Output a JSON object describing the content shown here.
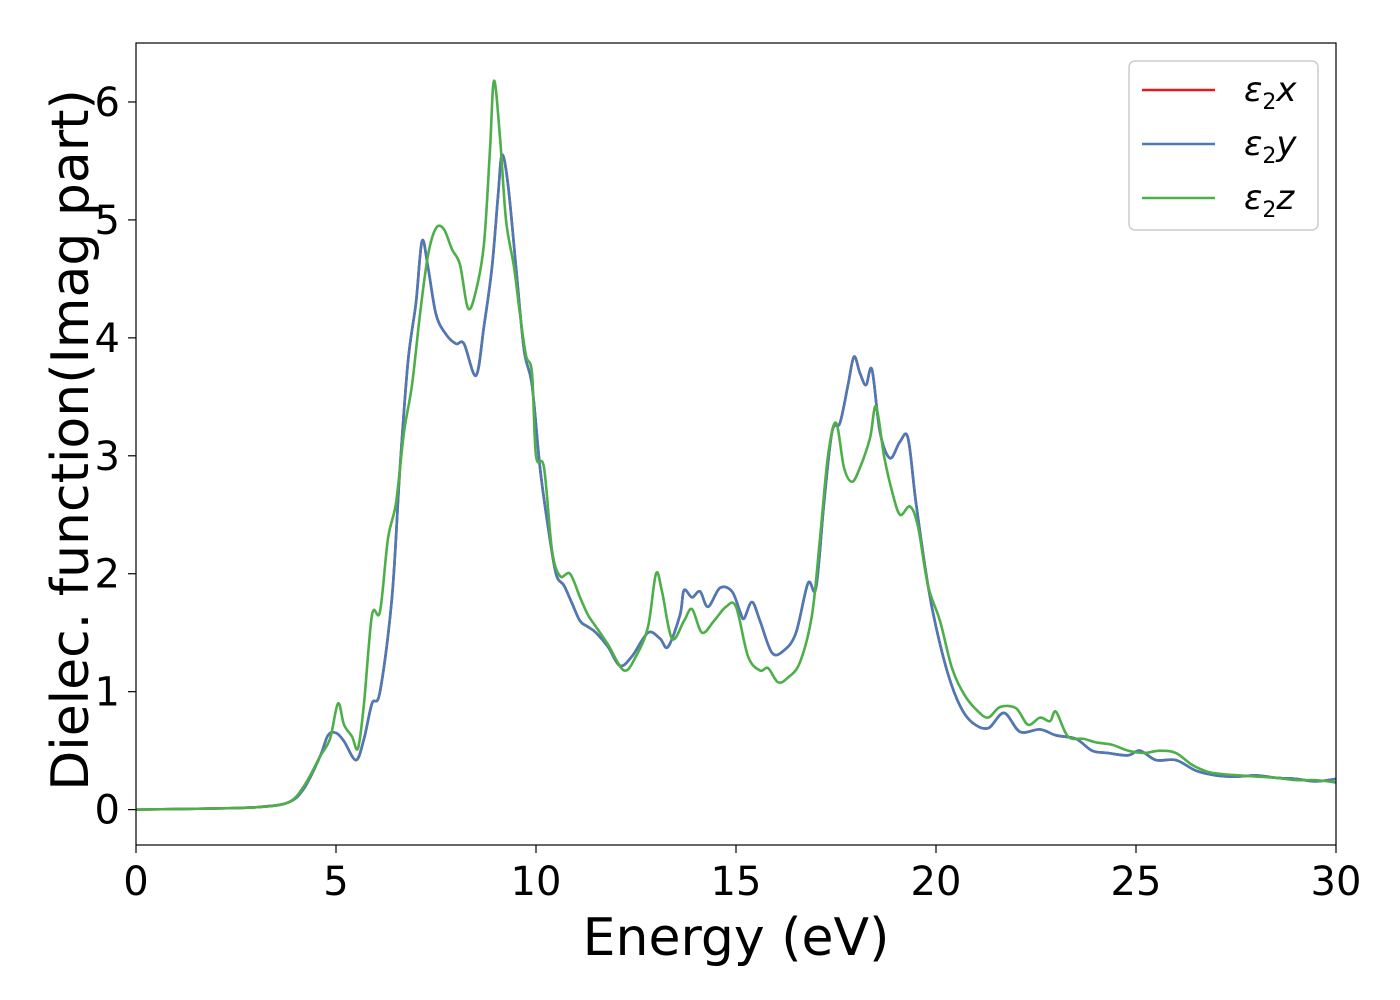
{
  "chart_data": {
    "type": "line",
    "xlabel": "Energy (eV)",
    "ylabel": "Dielec. function(Imag part)",
    "xlim": [
      0,
      30
    ],
    "ylim": [
      -0.3,
      6.5
    ],
    "xticks": [
      0,
      5,
      10,
      15,
      20,
      25,
      30
    ],
    "yticks": [
      0,
      1,
      2,
      3,
      4,
      5,
      6
    ],
    "grid": false,
    "legend_position": "top-right",
    "series": [
      {
        "name": "ε2x",
        "legend_base": "ε",
        "legend_sub": "2",
        "legend_tail": "x",
        "color": "#e41a1c",
        "points": [
          [
            0,
            0
          ],
          [
            1,
            0.005
          ],
          [
            2,
            0.01
          ],
          [
            3,
            0.02
          ],
          [
            3.8,
            0.06
          ],
          [
            4.2,
            0.18
          ],
          [
            4.6,
            0.45
          ],
          [
            4.8,
            0.63
          ],
          [
            5.0,
            0.65
          ],
          [
            5.2,
            0.58
          ],
          [
            5.5,
            0.42
          ],
          [
            5.7,
            0.6
          ],
          [
            5.9,
            0.9
          ],
          [
            6.1,
            1.0
          ],
          [
            6.4,
            1.8
          ],
          [
            6.6,
            2.9
          ],
          [
            6.8,
            3.8
          ],
          [
            7.0,
            4.3
          ],
          [
            7.15,
            4.82
          ],
          [
            7.3,
            4.6
          ],
          [
            7.5,
            4.2
          ],
          [
            7.75,
            4.03
          ],
          [
            8.0,
            3.95
          ],
          [
            8.2,
            3.95
          ],
          [
            8.5,
            3.68
          ],
          [
            8.7,
            4.1
          ],
          [
            8.9,
            4.6
          ],
          [
            9.05,
            5.2
          ],
          [
            9.15,
            5.55
          ],
          [
            9.3,
            5.3
          ],
          [
            9.5,
            4.6
          ],
          [
            9.7,
            3.9
          ],
          [
            9.9,
            3.6
          ],
          [
            10.1,
            2.9
          ],
          [
            10.3,
            2.4
          ],
          [
            10.5,
            2.0
          ],
          [
            10.7,
            1.9
          ],
          [
            10.9,
            1.75
          ],
          [
            11.1,
            1.6
          ],
          [
            11.3,
            1.55
          ],
          [
            11.5,
            1.5
          ],
          [
            11.8,
            1.38
          ],
          [
            12.1,
            1.22
          ],
          [
            12.4,
            1.3
          ],
          [
            12.8,
            1.5
          ],
          [
            13.1,
            1.45
          ],
          [
            13.3,
            1.38
          ],
          [
            13.6,
            1.65
          ],
          [
            13.7,
            1.86
          ],
          [
            13.9,
            1.8
          ],
          [
            14.1,
            1.85
          ],
          [
            14.3,
            1.72
          ],
          [
            14.6,
            1.88
          ],
          [
            14.9,
            1.85
          ],
          [
            15.1,
            1.68
          ],
          [
            15.2,
            1.62
          ],
          [
            15.4,
            1.76
          ],
          [
            15.6,
            1.6
          ],
          [
            15.9,
            1.33
          ],
          [
            16.2,
            1.35
          ],
          [
            16.5,
            1.5
          ],
          [
            16.8,
            1.92
          ],
          [
            17.0,
            1.88
          ],
          [
            17.2,
            2.6
          ],
          [
            17.4,
            3.2
          ],
          [
            17.6,
            3.28
          ],
          [
            17.8,
            3.6
          ],
          [
            17.95,
            3.84
          ],
          [
            18.1,
            3.7
          ],
          [
            18.25,
            3.6
          ],
          [
            18.4,
            3.73
          ],
          [
            18.6,
            3.2
          ],
          [
            18.85,
            2.98
          ],
          [
            19.1,
            3.12
          ],
          [
            19.3,
            3.15
          ],
          [
            19.5,
            2.6
          ],
          [
            19.8,
            1.9
          ],
          [
            20.0,
            1.55
          ],
          [
            20.3,
            1.15
          ],
          [
            20.6,
            0.88
          ],
          [
            20.9,
            0.74
          ],
          [
            21.3,
            0.69
          ],
          [
            21.7,
            0.82
          ],
          [
            22.1,
            0.66
          ],
          [
            22.6,
            0.68
          ],
          [
            23.0,
            0.63
          ],
          [
            23.5,
            0.6
          ],
          [
            23.9,
            0.5
          ],
          [
            24.3,
            0.48
          ],
          [
            24.8,
            0.46
          ],
          [
            25.1,
            0.5
          ],
          [
            25.5,
            0.42
          ],
          [
            26.0,
            0.42
          ],
          [
            26.5,
            0.33
          ],
          [
            27.0,
            0.29
          ],
          [
            27.5,
            0.28
          ],
          [
            28.0,
            0.29
          ],
          [
            28.5,
            0.27
          ],
          [
            29.0,
            0.26
          ],
          [
            29.5,
            0.24
          ],
          [
            30,
            0.26
          ]
        ]
      },
      {
        "name": "ε2y",
        "legend_base": "ε",
        "legend_sub": "2",
        "legend_tail": "y",
        "color": "#4a7bb7",
        "points": [
          [
            0,
            0
          ],
          [
            1,
            0.005
          ],
          [
            2,
            0.01
          ],
          [
            3,
            0.02
          ],
          [
            3.8,
            0.06
          ],
          [
            4.2,
            0.18
          ],
          [
            4.6,
            0.45
          ],
          [
            4.8,
            0.63
          ],
          [
            5.0,
            0.65
          ],
          [
            5.2,
            0.58
          ],
          [
            5.5,
            0.42
          ],
          [
            5.7,
            0.6
          ],
          [
            5.9,
            0.9
          ],
          [
            6.1,
            1.0
          ],
          [
            6.4,
            1.8
          ],
          [
            6.6,
            2.9
          ],
          [
            6.8,
            3.8
          ],
          [
            7.0,
            4.3
          ],
          [
            7.15,
            4.82
          ],
          [
            7.3,
            4.6
          ],
          [
            7.5,
            4.2
          ],
          [
            7.75,
            4.03
          ],
          [
            8.0,
            3.95
          ],
          [
            8.2,
            3.95
          ],
          [
            8.5,
            3.68
          ],
          [
            8.7,
            4.1
          ],
          [
            8.9,
            4.6
          ],
          [
            9.05,
            5.2
          ],
          [
            9.15,
            5.55
          ],
          [
            9.3,
            5.3
          ],
          [
            9.5,
            4.6
          ],
          [
            9.7,
            3.9
          ],
          [
            9.9,
            3.6
          ],
          [
            10.1,
            2.9
          ],
          [
            10.3,
            2.4
          ],
          [
            10.5,
            2.0
          ],
          [
            10.7,
            1.9
          ],
          [
            10.9,
            1.75
          ],
          [
            11.1,
            1.6
          ],
          [
            11.3,
            1.55
          ],
          [
            11.5,
            1.5
          ],
          [
            11.8,
            1.38
          ],
          [
            12.1,
            1.22
          ],
          [
            12.4,
            1.3
          ],
          [
            12.8,
            1.5
          ],
          [
            13.1,
            1.45
          ],
          [
            13.3,
            1.38
          ],
          [
            13.6,
            1.65
          ],
          [
            13.7,
            1.86
          ],
          [
            13.9,
            1.8
          ],
          [
            14.1,
            1.85
          ],
          [
            14.3,
            1.72
          ],
          [
            14.6,
            1.88
          ],
          [
            14.9,
            1.85
          ],
          [
            15.1,
            1.68
          ],
          [
            15.2,
            1.62
          ],
          [
            15.4,
            1.76
          ],
          [
            15.6,
            1.6
          ],
          [
            15.9,
            1.33
          ],
          [
            16.2,
            1.35
          ],
          [
            16.5,
            1.5
          ],
          [
            16.8,
            1.92
          ],
          [
            17.0,
            1.88
          ],
          [
            17.2,
            2.6
          ],
          [
            17.4,
            3.2
          ],
          [
            17.6,
            3.28
          ],
          [
            17.8,
            3.6
          ],
          [
            17.95,
            3.84
          ],
          [
            18.1,
            3.7
          ],
          [
            18.25,
            3.6
          ],
          [
            18.4,
            3.73
          ],
          [
            18.6,
            3.2
          ],
          [
            18.85,
            2.98
          ],
          [
            19.1,
            3.12
          ],
          [
            19.3,
            3.15
          ],
          [
            19.5,
            2.6
          ],
          [
            19.8,
            1.9
          ],
          [
            20.0,
            1.55
          ],
          [
            20.3,
            1.15
          ],
          [
            20.6,
            0.88
          ],
          [
            20.9,
            0.74
          ],
          [
            21.3,
            0.69
          ],
          [
            21.7,
            0.82
          ],
          [
            22.1,
            0.66
          ],
          [
            22.6,
            0.68
          ],
          [
            23.0,
            0.63
          ],
          [
            23.5,
            0.6
          ],
          [
            23.9,
            0.5
          ],
          [
            24.3,
            0.48
          ],
          [
            24.8,
            0.46
          ],
          [
            25.1,
            0.5
          ],
          [
            25.5,
            0.42
          ],
          [
            26.0,
            0.42
          ],
          [
            26.5,
            0.33
          ],
          [
            27.0,
            0.29
          ],
          [
            27.5,
            0.28
          ],
          [
            28.0,
            0.29
          ],
          [
            28.5,
            0.27
          ],
          [
            29.0,
            0.26
          ],
          [
            29.5,
            0.24
          ],
          [
            30,
            0.26
          ]
        ]
      },
      {
        "name": "ε2z",
        "legend_base": "ε",
        "legend_sub": "2",
        "legend_tail": "z",
        "color": "#4daf4a",
        "points": [
          [
            0,
            0
          ],
          [
            1,
            0.005
          ],
          [
            2,
            0.01
          ],
          [
            3,
            0.02
          ],
          [
            3.8,
            0.06
          ],
          [
            4.2,
            0.2
          ],
          [
            4.6,
            0.45
          ],
          [
            4.85,
            0.6
          ],
          [
            5.05,
            0.9
          ],
          [
            5.2,
            0.72
          ],
          [
            5.4,
            0.62
          ],
          [
            5.55,
            0.52
          ],
          [
            5.7,
            0.9
          ],
          [
            5.9,
            1.65
          ],
          [
            6.1,
            1.68
          ],
          [
            6.3,
            2.3
          ],
          [
            6.5,
            2.6
          ],
          [
            6.7,
            3.2
          ],
          [
            6.9,
            3.6
          ],
          [
            7.1,
            4.2
          ],
          [
            7.3,
            4.7
          ],
          [
            7.5,
            4.93
          ],
          [
            7.7,
            4.92
          ],
          [
            7.9,
            4.75
          ],
          [
            8.1,
            4.62
          ],
          [
            8.3,
            4.25
          ],
          [
            8.5,
            4.4
          ],
          [
            8.7,
            4.8
          ],
          [
            8.85,
            5.6
          ],
          [
            8.95,
            6.18
          ],
          [
            9.1,
            5.7
          ],
          [
            9.25,
            5.0
          ],
          [
            9.45,
            4.6
          ],
          [
            9.6,
            4.2
          ],
          [
            9.75,
            3.85
          ],
          [
            9.9,
            3.7
          ],
          [
            10.0,
            3.0
          ],
          [
            10.2,
            2.9
          ],
          [
            10.4,
            2.2
          ],
          [
            10.6,
            1.98
          ],
          [
            10.85,
            2.0
          ],
          [
            11.1,
            1.8
          ],
          [
            11.3,
            1.65
          ],
          [
            11.5,
            1.55
          ],
          [
            11.8,
            1.4
          ],
          [
            12.2,
            1.18
          ],
          [
            12.5,
            1.3
          ],
          [
            12.8,
            1.55
          ],
          [
            13.0,
            2.0
          ],
          [
            13.15,
            1.85
          ],
          [
            13.4,
            1.45
          ],
          [
            13.7,
            1.6
          ],
          [
            13.9,
            1.7
          ],
          [
            14.15,
            1.5
          ],
          [
            14.45,
            1.6
          ],
          [
            14.75,
            1.72
          ],
          [
            15.0,
            1.72
          ],
          [
            15.3,
            1.3
          ],
          [
            15.6,
            1.18
          ],
          [
            15.8,
            1.2
          ],
          [
            16.05,
            1.08
          ],
          [
            16.3,
            1.12
          ],
          [
            16.6,
            1.25
          ],
          [
            16.9,
            1.65
          ],
          [
            17.1,
            2.3
          ],
          [
            17.3,
            3.0
          ],
          [
            17.5,
            3.28
          ],
          [
            17.7,
            2.9
          ],
          [
            17.9,
            2.78
          ],
          [
            18.1,
            2.9
          ],
          [
            18.35,
            3.15
          ],
          [
            18.5,
            3.42
          ],
          [
            18.7,
            3.0
          ],
          [
            18.9,
            2.7
          ],
          [
            19.1,
            2.5
          ],
          [
            19.35,
            2.57
          ],
          [
            19.55,
            2.4
          ],
          [
            19.8,
            1.9
          ],
          [
            20.1,
            1.6
          ],
          [
            20.4,
            1.2
          ],
          [
            20.7,
            0.98
          ],
          [
            21.0,
            0.85
          ],
          [
            21.3,
            0.78
          ],
          [
            21.6,
            0.87
          ],
          [
            22.0,
            0.86
          ],
          [
            22.3,
            0.72
          ],
          [
            22.6,
            0.78
          ],
          [
            22.85,
            0.75
          ],
          [
            23.0,
            0.83
          ],
          [
            23.3,
            0.62
          ],
          [
            23.7,
            0.6
          ],
          [
            24.0,
            0.57
          ],
          [
            24.4,
            0.55
          ],
          [
            24.8,
            0.5
          ],
          [
            25.2,
            0.48
          ],
          [
            25.6,
            0.5
          ],
          [
            26.0,
            0.48
          ],
          [
            26.4,
            0.38
          ],
          [
            26.8,
            0.32
          ],
          [
            27.2,
            0.3
          ],
          [
            27.6,
            0.29
          ],
          [
            28.0,
            0.28
          ],
          [
            28.5,
            0.27
          ],
          [
            29.0,
            0.25
          ],
          [
            29.5,
            0.25
          ],
          [
            30,
            0.23
          ]
        ]
      }
    ]
  }
}
